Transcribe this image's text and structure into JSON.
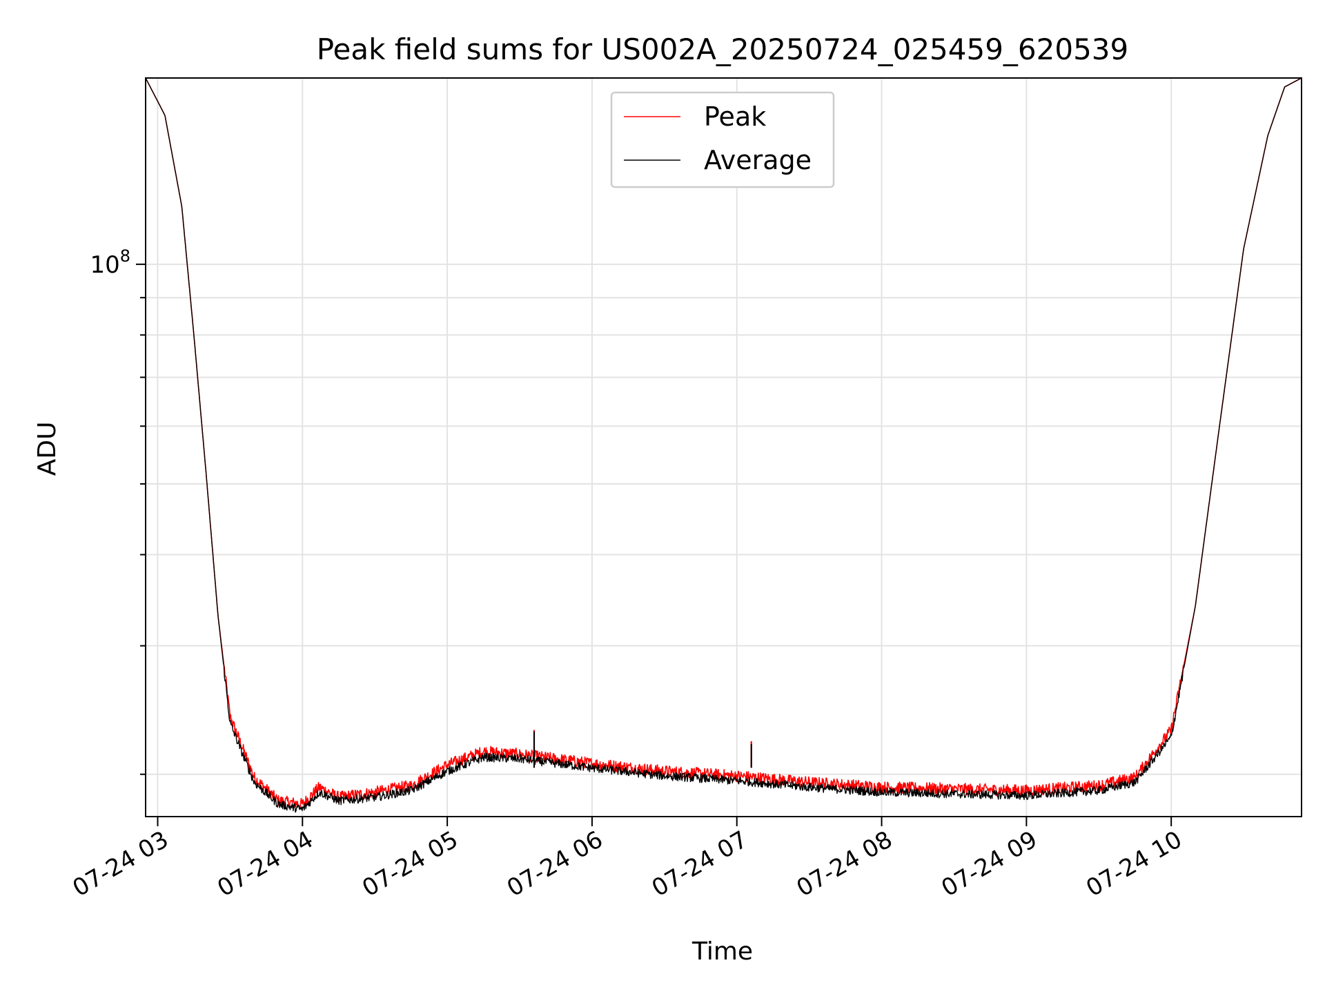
{
  "chart_data": {
    "type": "line",
    "title": "Peak field sums for US002A_20250724_025459_620539",
    "xlabel": "Time",
    "ylabel": "ADU",
    "y_scale": "log",
    "ylim": [
      17500000,
      180000000
    ],
    "xlim": [
      "2025-07-24 02:55",
      "2025-07-24 10:54"
    ],
    "x_ticks": [
      "07-24 03",
      "07-24 04",
      "07-24 05",
      "07-24 06",
      "07-24 07",
      "07-24 08",
      "07-24 09",
      "07-24 10"
    ],
    "y_ticks": [
      "10^8"
    ],
    "grid": true,
    "legend_position": "upper center",
    "colors": {
      "peak": "#ff0000",
      "average": "#000000"
    },
    "series": [
      {
        "name": "Peak",
        "x": [
          "2025-07-24 02:55",
          "2025-07-24 03:03",
          "2025-07-24 03:10",
          "2025-07-24 03:15",
          "2025-07-24 03:20",
          "2025-07-24 03:25",
          "2025-07-24 03:30",
          "2025-07-24 03:40",
          "2025-07-24 03:50",
          "2025-07-24 04:00",
          "2025-07-24 04:07",
          "2025-07-24 04:15",
          "2025-07-24 04:30",
          "2025-07-24 04:45",
          "2025-07-24 05:00",
          "2025-07-24 05:15",
          "2025-07-24 05:30",
          "2025-07-24 05:45",
          "2025-07-24 06:00",
          "2025-07-24 06:30",
          "2025-07-24 07:00",
          "2025-07-24 07:30",
          "2025-07-24 08:00",
          "2025-07-24 08:30",
          "2025-07-24 09:00",
          "2025-07-24 09:30",
          "2025-07-24 09:45",
          "2025-07-24 10:00",
          "2025-07-24 10:10",
          "2025-07-24 10:20",
          "2025-07-24 10:30",
          "2025-07-24 10:40",
          "2025-07-24 10:47",
          "2025-07-24 10:54"
        ],
        "y": [
          180000000,
          160000000,
          120000000,
          80000000,
          52000000,
          33000000,
          24000000,
          19800000,
          18400000,
          18200000,
          19200000,
          18600000,
          18900000,
          19300000,
          20600000,
          21500000,
          21300000,
          21000000,
          20700000,
          20200000,
          19900000,
          19500000,
          19200000,
          19100000,
          19000000,
          19300000,
          19800000,
          23000000,
          34000000,
          60000000,
          105000000,
          150000000,
          175000000,
          180000000
        ],
        "spikes": [
          {
            "x": "2025-07-24 05:36",
            "y": 23000000
          },
          {
            "x": "2025-07-24 07:06",
            "y": 22200000
          }
        ]
      },
      {
        "name": "Average",
        "x": [
          "2025-07-24 02:55",
          "2025-07-24 03:03",
          "2025-07-24 03:10",
          "2025-07-24 03:15",
          "2025-07-24 03:20",
          "2025-07-24 03:25",
          "2025-07-24 03:30",
          "2025-07-24 03:40",
          "2025-07-24 03:50",
          "2025-07-24 04:00",
          "2025-07-24 04:07",
          "2025-07-24 04:15",
          "2025-07-24 04:30",
          "2025-07-24 04:45",
          "2025-07-24 05:00",
          "2025-07-24 05:15",
          "2025-07-24 05:30",
          "2025-07-24 05:45",
          "2025-07-24 06:00",
          "2025-07-24 06:30",
          "2025-07-24 07:00",
          "2025-07-24 07:30",
          "2025-07-24 08:00",
          "2025-07-24 08:30",
          "2025-07-24 09:00",
          "2025-07-24 09:30",
          "2025-07-24 09:45",
          "2025-07-24 10:00",
          "2025-07-24 10:10",
          "2025-07-24 10:20",
          "2025-07-24 10:30",
          "2025-07-24 10:40",
          "2025-07-24 10:47",
          "2025-07-24 10:54"
        ],
        "y": [
          180000000,
          160000000,
          120000000,
          80000000,
          52000000,
          33000000,
          23500000,
          19500000,
          18200000,
          17900000,
          18900000,
          18400000,
          18600000,
          19000000,
          20200000,
          21100000,
          21000000,
          20700000,
          20400000,
          19900000,
          19600000,
          19200000,
          18900000,
          18800000,
          18700000,
          19000000,
          19500000,
          22500000,
          34000000,
          60000000,
          105000000,
          150000000,
          175000000,
          180000000
        ],
        "spikes": [
          {
            "x": "2025-07-24 05:36",
            "y": 22900000
          },
          {
            "x": "2025-07-24 07:06",
            "y": 22000000
          }
        ]
      }
    ]
  }
}
